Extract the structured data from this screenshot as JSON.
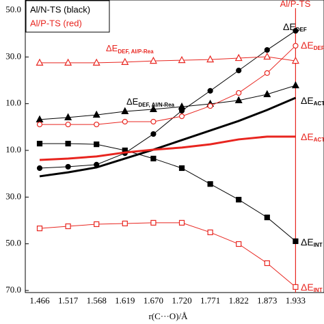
{
  "chart_data": {
    "type": "line",
    "xlabel": "r(C···O)/Å",
    "categories": [
      "1.466",
      "1.517",
      "1.568",
      "1.619",
      "1.670",
      "1.720",
      "1.771",
      "1.822",
      "1.873",
      "1.933"
    ],
    "ylim": [
      -70,
      50
    ],
    "yticks": [
      {
        "value": 50,
        "label": "50.0"
      },
      {
        "value": 30,
        "label": "30.0"
      },
      {
        "value": 10,
        "label": "10.0"
      },
      {
        "value": -10,
        "label": "10.0"
      },
      {
        "value": -30,
        "label": "30.0"
      },
      {
        "value": -50,
        "label": "50.0"
      },
      {
        "value": -70,
        "label": "70.0"
      }
    ],
    "legend": [
      {
        "text": "Al/N-TS (black)",
        "color": "#000000"
      },
      {
        "text": "Al/P-TS (red)",
        "color": "#e8251f"
      }
    ],
    "series": [
      {
        "color": "#000000",
        "marker": "square",
        "filled": true,
        "width": 1,
        "values": [
          -7.1,
          -7.1,
          -7.4,
          -10.0,
          -13.5,
          -17.6,
          -24.4,
          -31.1,
          -38.7,
          -48.9
        ]
      },
      {
        "color": "#000000",
        "marker": "circle",
        "filled": true,
        "width": 1,
        "values": [
          -17.6,
          -17.0,
          -16.1,
          -11.2,
          -3.0,
          7.0,
          15.5,
          24.2,
          33.0,
          41.2
        ]
      },
      {
        "color": "#000000",
        "marker": "triangle",
        "filled": true,
        "width": 1,
        "values": [
          3.2,
          4.1,
          5.2,
          6.7,
          7.6,
          8.7,
          9.9,
          11.4,
          14.0,
          17.8
        ]
      },
      {
        "color": "#000000",
        "marker": "none",
        "filled": true,
        "width": 3,
        "values": [
          -21.1,
          -19.4,
          -17.3,
          -13.5,
          -9.7,
          -5.6,
          -1.5,
          2.6,
          7.3,
          12.5
        ]
      },
      {
        "color": "#e8251f",
        "marker": "triangle",
        "filled": false,
        "width": 1,
        "values": [
          27.5,
          27.5,
          27.5,
          27.8,
          28.3,
          28.6,
          28.9,
          29.5,
          30.1,
          28.3
        ]
      },
      {
        "color": "#e8251f",
        "marker": "circle",
        "filled": false,
        "width": 1,
        "values": [
          1.1,
          1.1,
          1.1,
          2.3,
          2.3,
          4.6,
          9.0,
          14.6,
          23.1,
          34.8
        ]
      },
      {
        "color": "#e8251f",
        "marker": "none",
        "filled": true,
        "width": 3,
        "values": [
          -14.1,
          -13.5,
          -12.6,
          -10.9,
          -9.7,
          -8.8,
          -7.4,
          -5.3,
          -4.1,
          -4.1
        ]
      },
      {
        "color": "#e8251f",
        "marker": "square",
        "filled": false,
        "width": 1,
        "values": [
          -43.4,
          -42.5,
          -41.6,
          -41.3,
          -41.0,
          -41.0,
          -45.1,
          -50.1,
          -58.3,
          -68.5
        ]
      }
    ],
    "annotations": [
      {
        "text": "ΔE",
        "sub": "DEF",
        "color": "#000000"
      },
      {
        "text": "ΔE",
        "sub": "DEF",
        "color": "#e8251f"
      },
      {
        "text": "ΔE",
        "sub": "ACT",
        "color": "#000000"
      },
      {
        "text": "ΔE",
        "sub": "ACT",
        "color": "#e8251f"
      },
      {
        "text": "ΔE",
        "sub": "INT",
        "color": "#000000"
      },
      {
        "text": "ΔE",
        "sub": "INT",
        "color": "#e8251f"
      },
      {
        "text": "ΔE",
        "sub": "DEF, Al/P-Rea",
        "color": "#e8251f"
      },
      {
        "text": "ΔE",
        "sub": "DEF, Al/N-Rea",
        "color": "#000000"
      },
      {
        "text": "Al/P-TS",
        "sub": "",
        "color": "#e8251f"
      }
    ]
  }
}
